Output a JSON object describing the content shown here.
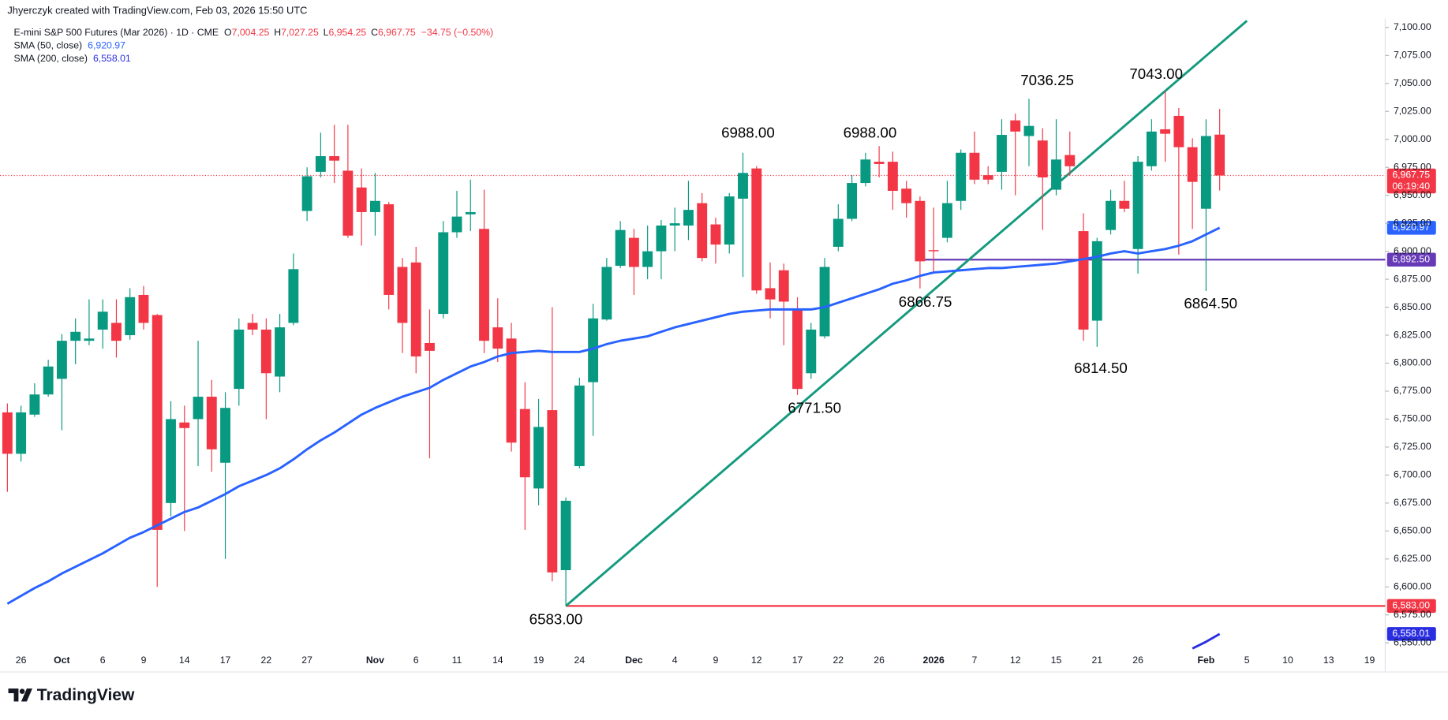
{
  "header": {
    "credit": "Jhyerczyk created with TradingView.com, Feb 03, 2026 15:50 UTC"
  },
  "legend": {
    "symbol": "E-mini S&P 500 Futures (Mar 2026) · 1D · CME",
    "ohlc": [
      {
        "key": "O",
        "value": "7,004.25"
      },
      {
        "key": "H",
        "value": "7,027.25"
      },
      {
        "key": "L",
        "value": "6,954.25"
      },
      {
        "key": "C",
        "value": "6,967.75"
      }
    ],
    "change": "−34.75 (−0.50%)"
  },
  "logo": "TradingView",
  "chart_data": {
    "type": "candlestick",
    "up_color": "#089981",
    "down_color": "#f23645",
    "grid": false,
    "ylim": [
      6543,
      7108
    ],
    "yticks": [
      {
        "value": 7100,
        "label": "7,100.00"
      },
      {
        "value": 7075,
        "label": "7,075.00"
      },
      {
        "value": 7050,
        "label": "7,050.00"
      },
      {
        "value": 7025,
        "label": "7,025.00"
      },
      {
        "value": 7000,
        "label": "7,000.00"
      },
      {
        "value": 6975,
        "label": "6,975.00"
      },
      {
        "value": 6950,
        "label": "6,950.00"
      },
      {
        "value": 6925,
        "label": "6,925.00"
      },
      {
        "value": 6900,
        "label": "6,900.00"
      },
      {
        "value": 6875,
        "label": "6,875.00"
      },
      {
        "value": 6850,
        "label": "6,850.00"
      },
      {
        "value": 6825,
        "label": "6,825.00"
      },
      {
        "value": 6800,
        "label": "6,800.00"
      },
      {
        "value": 6775,
        "label": "6,775.00"
      },
      {
        "value": 6750,
        "label": "6,750.00"
      },
      {
        "value": 6725,
        "label": "6,725.00"
      },
      {
        "value": 6700,
        "label": "6,700.00"
      },
      {
        "value": 6675,
        "label": "6,675.00"
      },
      {
        "value": 6650,
        "label": "6,650.00"
      },
      {
        "value": 6625,
        "label": "6,625.00"
      },
      {
        "value": 6600,
        "label": "6,600.00"
      },
      {
        "value": 6575,
        "label": "6,575.00"
      },
      {
        "value": 6550,
        "label": "6,550.00"
      }
    ],
    "categories": [
      null,
      "26",
      null,
      null,
      "Oct",
      null,
      null,
      "6",
      null,
      null,
      "9",
      null,
      null,
      "14",
      null,
      null,
      "17",
      null,
      null,
      "22",
      null,
      null,
      "27",
      null,
      null,
      null,
      null,
      "Nov",
      null,
      null,
      "6",
      null,
      null,
      "11",
      null,
      null,
      "14",
      null,
      null,
      "19",
      null,
      null,
      "24",
      null,
      null,
      null,
      "Dec",
      null,
      null,
      "4",
      null,
      null,
      "9",
      null,
      null,
      "12",
      null,
      null,
      "17",
      null,
      null,
      "22",
      null,
      null,
      "26",
      null,
      null,
      null,
      "2026",
      null,
      null,
      "7",
      null,
      null,
      "12",
      null,
      null,
      "15",
      null,
      null,
      "21",
      null,
      null,
      "26",
      null,
      null,
      null,
      null,
      "Feb",
      null,
      null,
      "5",
      null,
      null,
      "10",
      null,
      null,
      "13",
      null,
      null,
      "19",
      null
    ],
    "open": [
      6756,
      6719,
      6754,
      6772,
      6786,
      6820,
      6820,
      6830,
      6836,
      6825,
      6861,
      6843,
      6675,
      6747,
      6750,
      6770,
      6711,
      6777,
      6836,
      6830,
      6788,
      6836,
      6936,
      6971,
      6985,
      6972,
      6957,
      6935,
      6942,
      6886,
      6890,
      6818,
      6844,
      6917,
      6933,
      6920,
      6832,
      6822,
      6759,
      6688,
      6758,
      6615,
      6708,
      6783,
      6839,
      6887,
      6912,
      6886,
      6900,
      6923,
      6923,
      6943,
      6924,
      6906,
      6947,
      6974,
      6867,
      6883,
      6848,
      6791,
      6824,
      6904,
      6929,
      6961,
      6980,
      6980,
      6956,
      6945,
      6901,
      6912,
      6945,
      6988,
      6968,
      6971,
      7017,
      7003,
      6999,
      6955,
      6986,
      6918,
      6838,
      6919,
      6945,
      6902,
      6976,
      7009,
      7021,
      6993,
      6938,
      7004.25,
      null,
      null,
      null,
      null,
      null,
      null,
      null,
      null,
      null,
      null,
      null,
      null
    ],
    "high": [
      6764,
      6762,
      6782,
      6803,
      6826,
      6840,
      6857,
      6857,
      6857,
      6867,
      6869,
      6844,
      6766,
      6762,
      6820,
      6785,
      6774,
      6840,
      6844,
      6840,
      6844,
      6898,
      6975,
      7006,
      7013,
      7013,
      6974,
      6970,
      6944,
      6894,
      6904,
      6848,
      6927,
      6954,
      6964,
      6955,
      6858,
      6836,
      6783,
      6768,
      6850,
      6680,
      6787,
      6853,
      6894,
      6927,
      6920,
      6923,
      6928,
      6939,
      6963,
      6952,
      6930,
      6952,
      6988,
      6976,
      6890,
      6889,
      6859,
      6836,
      6894,
      6942,
      6968,
      6988,
      6994,
      6989,
      6963,
      6949,
      6939,
      6963,
      6991,
      7007,
      6976,
      7018,
      7023,
      7036.25,
      7010,
      7018,
      7007,
      6934,
      6912,
      6955,
      6963,
      6985,
      7018,
      7043,
      7028,
      7001,
      7018,
      7027.25,
      null,
      null,
      null,
      null,
      null,
      null,
      null,
      null,
      null,
      null,
      null,
      null
    ],
    "low": [
      6685,
      6712,
      6752,
      6770,
      6740,
      6799,
      6816,
      6813,
      6805,
      6821,
      6830,
      6600,
      6663,
      6650,
      6708,
      6703,
      6625,
      6762,
      6825,
      6750,
      6774,
      6834,
      6927,
      6966,
      6961,
      6912,
      6905,
      6914,
      6848,
      6809,
      6791,
      6715,
      6840,
      6912,
      6918,
      6809,
      6801,
      6721,
      6651,
      6673,
      6605,
      6583,
      6706,
      6735,
      6838,
      6885,
      6861,
      6875,
      6875,
      6900,
      6910,
      6891,
      6889,
      6898,
      6877,
      6862,
      6840,
      6816,
      6771.5,
      6786,
      6822,
      6900,
      6927,
      6958,
      6966,
      6937,
      6930,
      6866.75,
      6881,
      6908,
      6937,
      6960,
      6960,
      6955,
      6950,
      6976,
      6919,
      6950,
      6968,
      6820,
      6814.5,
      6915,
      6935,
      6880,
      6972,
      6980,
      6897,
      6920,
      6864.5,
      6954.25,
      null,
      null,
      null,
      null,
      null,
      null,
      null,
      null,
      null,
      null,
      null,
      null
    ],
    "close": [
      6719,
      6756,
      6772,
      6797,
      6820,
      6828,
      6822,
      6846,
      6820,
      6859,
      6836,
      6651,
      6750,
      6742,
      6770,
      6723,
      6760,
      6830,
      6830,
      6791,
      6832,
      6884,
      6967,
      6985,
      6981,
      6914,
      6935,
      6945,
      6861,
      6836,
      6806,
      6811,
      6917,
      6931,
      6935,
      6820,
      6813,
      6729,
      6698,
      6743,
      6613,
      6677,
      6780,
      6840,
      6886,
      6919,
      6886,
      6900,
      6923,
      6925,
      6937,
      6894,
      6906,
      6949,
      6970,
      6865,
      6857,
      6855,
      6777,
      6830,
      6886,
      6929,
      6961,
      6982,
      6978,
      6954,
      6943,
      6891,
      6900,
      6943,
      6988,
      6964,
      6964,
      7004,
      7007,
      7012,
      6966,
      6982,
      6976,
      6830,
      6909,
      6945,
      6938,
      6980,
      7007,
      7005,
      6993,
      6962,
      7003,
      6967.75,
      null,
      null,
      null,
      null,
      null,
      null,
      null,
      null,
      null,
      null,
      null,
      null
    ],
    "series": [
      {
        "name": "SMA (50, close)",
        "value_label": "6,920.97",
        "color": "#2962ff",
        "values": [
          6585,
          6592,
          6599,
          6605,
          6612,
          6618,
          6624,
          6630,
          6637,
          6644,
          6649,
          6655,
          6661,
          6667,
          6671,
          6677,
          6683,
          6690,
          6695,
          6700,
          6706,
          6714,
          6723,
          6731,
          6738,
          6746,
          6754,
          6760,
          6765,
          6770,
          6774,
          6778,
          6785,
          6791,
          6797,
          6801,
          6806,
          6809,
          6810,
          6811,
          6810,
          6810,
          6810,
          6813,
          6817,
          6820,
          6822,
          6824,
          6828,
          6832,
          6835,
          6838,
          6841,
          6844,
          6846,
          6847,
          6848,
          6848,
          6848,
          6848,
          6850,
          6854,
          6858,
          6862,
          6866,
          6871,
          6874,
          6878,
          6881,
          6882,
          6883,
          6884,
          6885,
          6885,
          6886,
          6887,
          6888,
          6889,
          6891,
          6893,
          6895,
          6898,
          6900,
          6898,
          6900,
          6902,
          6905,
          6909,
          6915,
          6920.97,
          null,
          null,
          null,
          null,
          null,
          null,
          null,
          null,
          null,
          null,
          null,
          null
        ]
      },
      {
        "name": "SMA (200, close)",
        "value_label": "6,558.01",
        "color": "#2a2ee0",
        "values": [
          null,
          null,
          null,
          null,
          null,
          null,
          null,
          null,
          null,
          null,
          null,
          null,
          null,
          null,
          null,
          null,
          null,
          null,
          null,
          null,
          null,
          null,
          null,
          null,
          null,
          null,
          null,
          null,
          null,
          null,
          null,
          null,
          null,
          null,
          null,
          null,
          null,
          null,
          null,
          null,
          null,
          null,
          null,
          null,
          null,
          null,
          null,
          null,
          null,
          null,
          null,
          null,
          null,
          null,
          null,
          null,
          null,
          null,
          null,
          null,
          null,
          null,
          null,
          null,
          null,
          null,
          null,
          null,
          null,
          null,
          null,
          null,
          null,
          null,
          null,
          null,
          null,
          null,
          null,
          null,
          null,
          null,
          null,
          null,
          null,
          null,
          null,
          6545,
          6551,
          6558.01,
          null,
          null,
          null,
          null,
          null,
          null,
          null,
          null,
          null,
          null,
          null,
          null
        ]
      }
    ],
    "trendline": {
      "color": "#149a7e",
      "start": {
        "index": 41,
        "value": 6583
      },
      "end": {
        "index": 91,
        "value": 7106
      }
    },
    "hlines": [
      {
        "value": 6583,
        "start": 41,
        "color": "#f23645"
      },
      {
        "value": 6892.5,
        "start": 67,
        "color": "#673ab7"
      }
    ],
    "price_tags": [
      {
        "label": "6,967.75",
        "countdown": "06:19:40",
        "value": 6967.75,
        "color": "#f23645"
      },
      {
        "label": "6,920.97",
        "value": 6920.97,
        "color": "#2962ff"
      },
      {
        "label": "6,892.50",
        "value": 6892.5,
        "color": "#673ab7"
      },
      {
        "label": "6,583.00",
        "value": 6583,
        "color": "#f23645"
      },
      {
        "label": "6,558.01",
        "value": 6558.01,
        "color": "#2a2ee0"
      }
    ],
    "annotations": [
      "6583.00",
      "6988.00",
      "6771.50",
      "6988.00",
      "6866.75",
      "7036.25",
      "6814.50",
      "7043.00",
      "6864.50"
    ]
  }
}
